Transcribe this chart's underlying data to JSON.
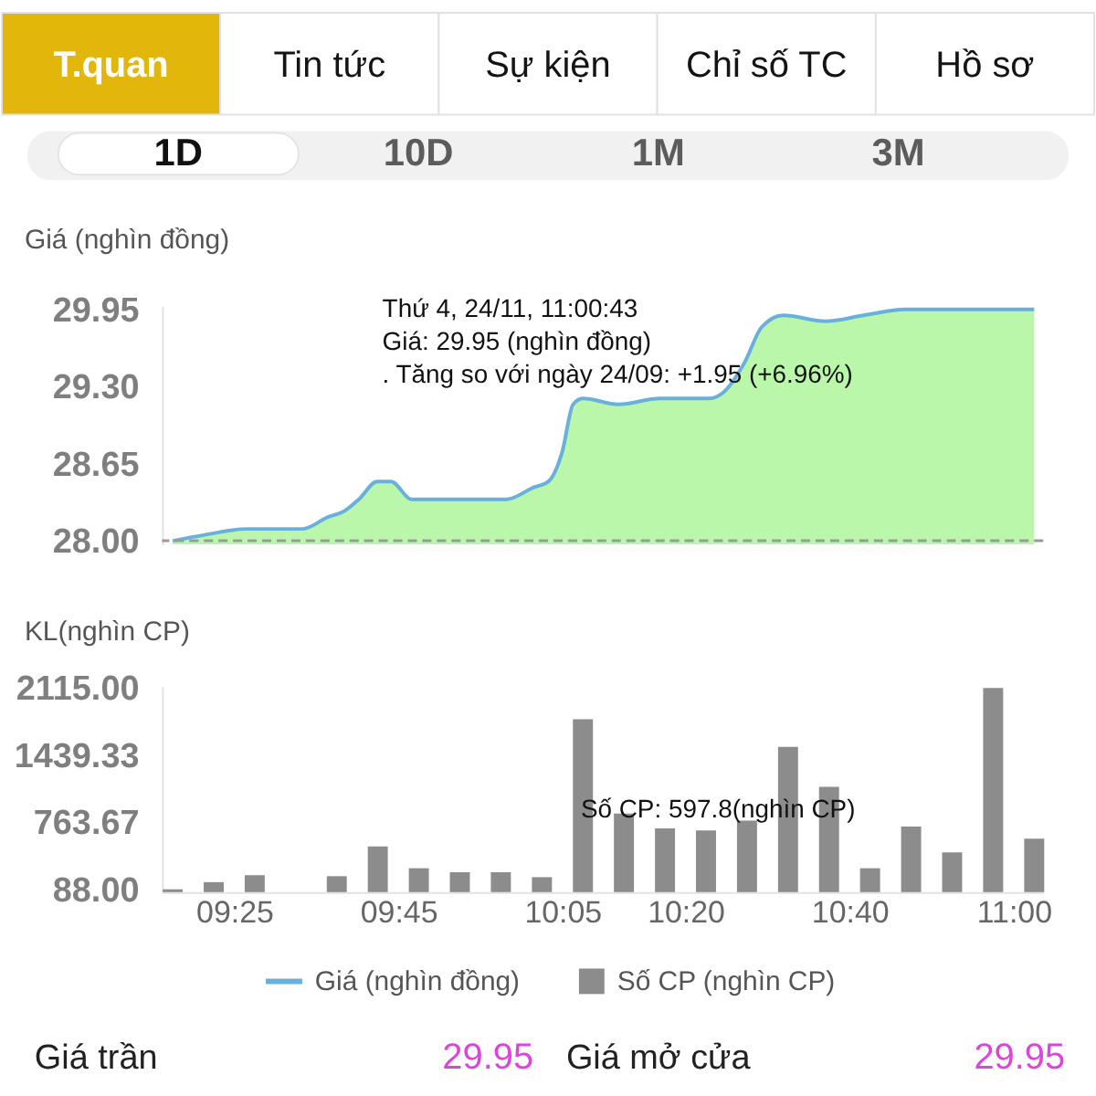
{
  "chart_data": [
    {
      "type": "other",
      "annotations": [
        "T.quan",
        "Tin tức",
        "Sự kiện",
        "Chỉ số TC",
        "Hồ sơ"
      ]
    },
    {
      "type": "other",
      "annotations": [
        "1D",
        "10D",
        "1M",
        "3M"
      ]
    },
    {
      "type": "area",
      "ylabel": "Giá (nghìn đồng)",
      "tick_labels": "y",
      "x": [
        9.2917,
        9.357,
        9.442,
        9.555,
        9.607,
        9.64,
        9.67,
        9.707,
        9.735,
        9.777,
        9.799,
        9.97,
        10.025,
        10.055,
        10.083,
        10.105,
        10.125,
        10.197,
        10.282,
        10.382,
        10.41,
        10.453,
        10.488,
        10.532,
        10.618,
        10.695,
        10.78,
        11.0417
      ],
      "series": [
        {
          "type": "area",
          "color": "#bbf7ab",
          "values": [
            28.0,
            28.05,
            28.1,
            28.1,
            28.2,
            28.25,
            28.35,
            28.5,
            28.5,
            28.35,
            28.35,
            28.35,
            28.45,
            28.5,
            28.75,
            29.15,
            29.2,
            29.15,
            29.2,
            29.2,
            29.25,
            29.5,
            29.8,
            29.9,
            29.85,
            29.9,
            29.95,
            29.95
          ]
        },
        {
          "type": "line",
          "name": "Giá (nghìn đồng)",
          "color": "#6ab0dc",
          "values": [
            28.0,
            28.05,
            28.1,
            28.1,
            28.2,
            28.25,
            28.35,
            28.5,
            28.5,
            28.35,
            28.35,
            28.35,
            28.45,
            28.5,
            28.75,
            29.15,
            29.2,
            29.15,
            29.2,
            29.2,
            29.25,
            29.5,
            29.8,
            29.9,
            29.85,
            29.9,
            29.95,
            29.95
          ]
        }
      ],
      "xlim": [
        9.27,
        11.06
      ],
      "ylim": [
        27.97,
        29.98
      ],
      "yticks": [
        {
          "value": 28,
          "label": "28.00"
        },
        28.65,
        {
          "value": 29.3,
          "label": "29.30"
        },
        29.95
      ],
      "ref_lines": [
        {
          "axis": "y",
          "value": 28,
          "color": "#9a9a9a",
          "line_style": "dashed"
        }
      ],
      "annotations": [
        "Thứ 4, 24/11, 11:00:43\nGiá: 29.95 (nghìn đồng)\n. Tăng so với ngày 24/09: +1.95 (+6.96%)"
      ]
    },
    {
      "type": "bar",
      "ylabel": "KL(nghìn CP)",
      "legend": "bottom",
      "x": [
        9.2917,
        9.375,
        9.4583,
        9.5417,
        9.625,
        9.7083,
        9.7917,
        9.875,
        9.9583,
        10.0417,
        10.125,
        10.2083,
        10.2917,
        10.375,
        10.4583,
        10.5417,
        10.625,
        10.7083,
        10.7917,
        10.875,
        10.9583,
        11.0417
      ],
      "series": [
        {
          "name": "Số CP (nghìn CP)",
          "color": "#8c8c8c",
          "values": [
            88,
            160,
            230,
            null,
            220,
            520,
            300,
            260,
            260,
            210,
            1800,
            850,
            700,
            680,
            780,
            1520,
            1120,
            300,
            720,
            460,
            2115,
            597.8
          ]
        }
      ],
      "xlim": [
        9.27,
        11.06
      ],
      "ylim": [
        60,
        2130
      ],
      "xticks": [
        {
          "value": 9.4167,
          "label": "09:25"
        },
        {
          "value": 9.75,
          "label": "09:45"
        },
        {
          "value": 10.0833,
          "label": "10:05"
        },
        {
          "value": 10.3333,
          "label": "10:20"
        },
        {
          "value": 10.6667,
          "label": "10:40"
        },
        {
          "value": 11,
          "label": "11:00"
        }
      ],
      "yticks": [
        {
          "value": 88,
          "label": "88.00"
        },
        763.67,
        1439.33,
        {
          "value": 2115,
          "label": "2115.00"
        }
      ],
      "annotations": [
        "Số CP: 597.8(nghìn CP)"
      ]
    },
    {
      "type": "other",
      "annotations": [
        "Giá trần",
        "29.95",
        "Giá mở cửa",
        "29.95"
      ]
    }
  ]
}
